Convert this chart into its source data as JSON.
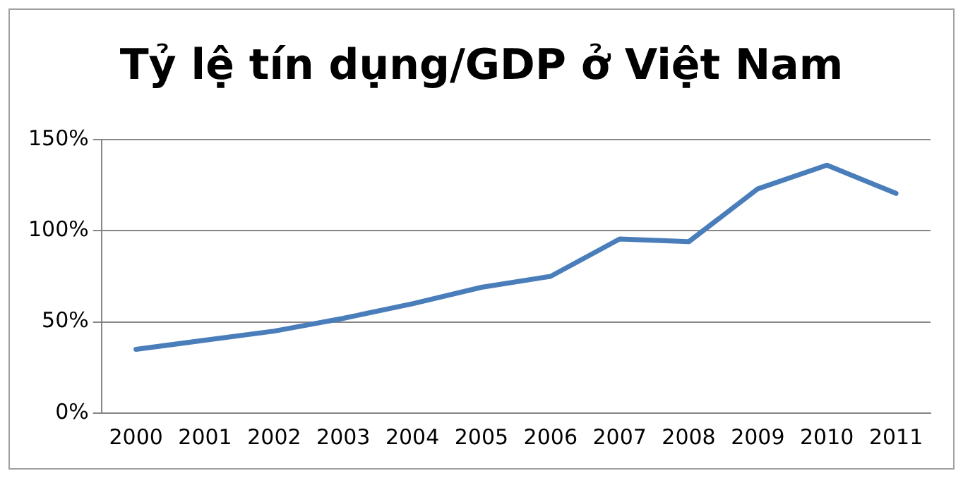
{
  "chart_data": {
    "type": "line",
    "title": "Tỷ lệ tín dụng/GDP ở Việt Nam",
    "categories": [
      "2000",
      "2001",
      "2002",
      "2003",
      "2004",
      "2005",
      "2006",
      "2007",
      "2008",
      "2009",
      "2010",
      "2011"
    ],
    "series": [
      {
        "color": "#4a7ebb",
        "values": [
          35,
          40,
          45,
          52,
          60,
          69,
          75,
          95.5,
          94,
          123,
          136,
          120.5
        ]
      }
    ],
    "ylim": [
      0,
      150
    ],
    "yticks": [
      {
        "value": 0,
        "label": "0%"
      },
      {
        "value": 50,
        "label": "50%"
      },
      {
        "value": 100,
        "label": "100%"
      },
      {
        "value": 150,
        "label": "150%"
      }
    ],
    "grid": "y",
    "legend": false,
    "marker": "none",
    "line_style": "solid"
  }
}
